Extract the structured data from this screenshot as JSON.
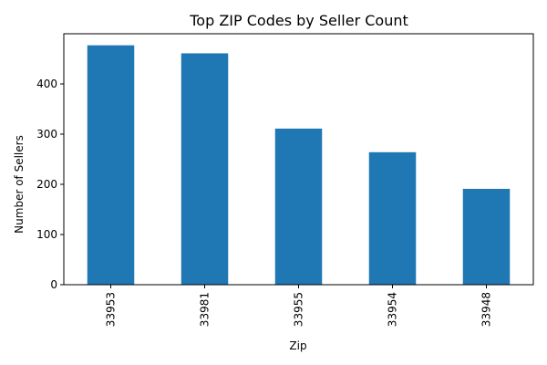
{
  "chart_data": {
    "type": "bar",
    "title": "Top ZIP Codes by Seller Count",
    "xlabel": "Zip",
    "ylabel": "Number of Sellers",
    "categories": [
      "33953",
      "33981",
      "33955",
      "33954",
      "33948"
    ],
    "values": [
      477,
      461,
      311,
      264,
      191
    ],
    "ylim": [
      0,
      500
    ],
    "yticks": [
      0,
      100,
      200,
      300,
      400
    ],
    "grid": false,
    "legend": "none",
    "bar_color": "#1f77b4",
    "x_tick_rotation": "vertical"
  }
}
